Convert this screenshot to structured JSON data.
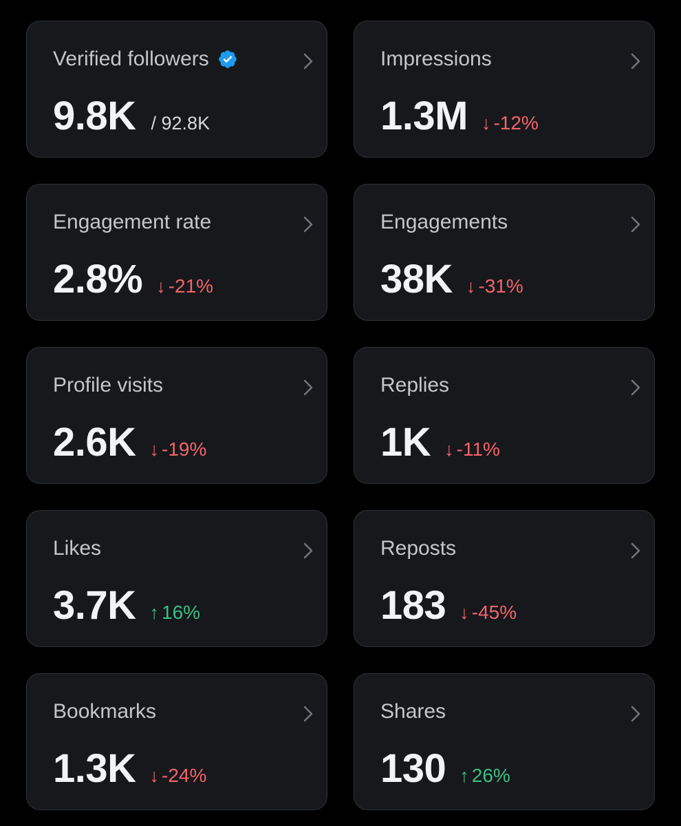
{
  "colors": {
    "background": "#000000",
    "card": "#16181c",
    "border": "#2f3336",
    "down": "#f4646a",
    "up": "#3fbf83",
    "verified": "#1d9bf0"
  },
  "cards": [
    {
      "label": "Verified followers",
      "value": "9.8K",
      "total": "/ 92.8K",
      "verified_icon": "verified-badge-icon"
    },
    {
      "label": "Impressions",
      "value": "1.3M",
      "change": "-12%",
      "direction": "down",
      "arrow": "↓"
    },
    {
      "label": "Engagement rate",
      "value": "2.8%",
      "change": "-21%",
      "direction": "down",
      "arrow": "↓"
    },
    {
      "label": "Engagements",
      "value": "38K",
      "change": "-31%",
      "direction": "down",
      "arrow": "↓"
    },
    {
      "label": "Profile visits",
      "value": "2.6K",
      "change": "-19%",
      "direction": "down",
      "arrow": "↓"
    },
    {
      "label": "Replies",
      "value": "1K",
      "change": "-11%",
      "direction": "down",
      "arrow": "↓"
    },
    {
      "label": "Likes",
      "value": "3.7K",
      "change": "16%",
      "direction": "up",
      "arrow": "↑"
    },
    {
      "label": "Reposts",
      "value": "183",
      "change": "-45%",
      "direction": "down",
      "arrow": "↓"
    },
    {
      "label": "Bookmarks",
      "value": "1.3K",
      "change": "-24%",
      "direction": "down",
      "arrow": "↓"
    },
    {
      "label": "Shares",
      "value": "130",
      "change": "26%",
      "direction": "up",
      "arrow": "↑"
    }
  ]
}
